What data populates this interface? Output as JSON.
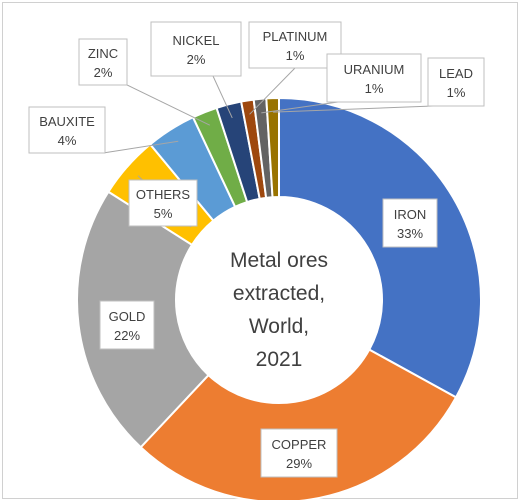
{
  "chart_data": {
    "type": "pie",
    "variant": "donut",
    "title_lines": [
      "Metal ores",
      "extracted,",
      "World,",
      "2021"
    ],
    "legend": "none",
    "slices": [
      {
        "name": "IRON",
        "label": "33%",
        "value": 33,
        "color": "#4472C4"
      },
      {
        "name": "COPPER",
        "label": "29%",
        "value": 29,
        "color": "#ED7D31"
      },
      {
        "name": "GOLD",
        "label": "22%",
        "value": 22,
        "color": "#A5A5A5"
      },
      {
        "name": "OTHERS",
        "label": "5%",
        "value": 5,
        "color": "#FFC000"
      },
      {
        "name": "BAUXITE",
        "label": "4%",
        "value": 4,
        "color": "#5B9BD5"
      },
      {
        "name": "ZINC",
        "label": "2%",
        "value": 2,
        "color": "#70AD47"
      },
      {
        "name": "NICKEL",
        "label": "2%",
        "value": 2,
        "color": "#264478"
      },
      {
        "name": "PLATINUM",
        "label": "1%",
        "value": 1,
        "color": "#9E480E"
      },
      {
        "name": "URANIUM",
        "label": "1%",
        "value": 1,
        "color": "#636363"
      },
      {
        "name": "LEAD",
        "label": "1%",
        "value": 1,
        "color": "#997300"
      }
    ]
  }
}
